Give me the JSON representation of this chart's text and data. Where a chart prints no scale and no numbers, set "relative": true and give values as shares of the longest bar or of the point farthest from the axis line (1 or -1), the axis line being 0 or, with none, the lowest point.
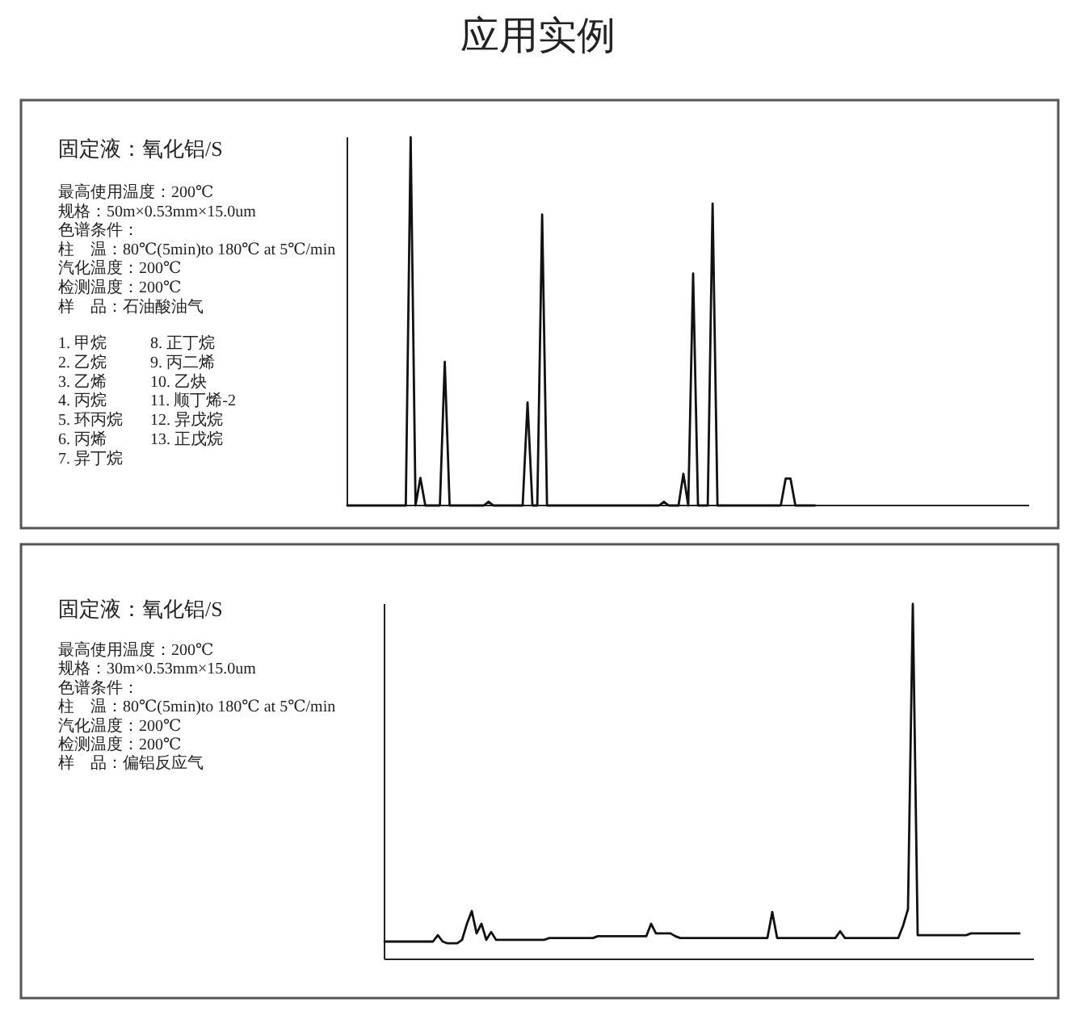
{
  "chart_data": [
    {
      "type": "line",
      "title": "应用实例",
      "annotations": [
        "固定液：氧化铝/S",
        "最高使用温度：200℃",
        "规格：50m×0.53mm×15.0um",
        "色谱条件：",
        "柱　温：80℃(5min)to 180℃ at 5℃/min",
        "汽化温度：200℃",
        "检测温度：200℃",
        "样　品：石油酸油气",
        "1. 甲烷",
        "2. 乙烷",
        "3. 乙烯",
        "4. 丙烷",
        "5. 环丙烷",
        "6. 丙烯",
        "7. 异丁烷",
        "8. 正丁烷",
        "9. 丙二烯",
        "10. 乙炔",
        "11. 顺丁烯-2",
        "12. 异戊烷",
        "13. 正戊烷"
      ],
      "relative": true,
      "categories": [
        null,
        null,
        null,
        null,
        null,
        null,
        null,
        null,
        null,
        null,
        null,
        null,
        null,
        null,
        null,
        null,
        null,
        null,
        null,
        null,
        null,
        null,
        null,
        null,
        null,
        null,
        null,
        null,
        null,
        null,
        null,
        null,
        null,
        null,
        null,
        null,
        null,
        null,
        null,
        null,
        null,
        null,
        null,
        null,
        null,
        null,
        null,
        null,
        null,
        null,
        null,
        null,
        null,
        null,
        null,
        null,
        null,
        null,
        null,
        null,
        null,
        null,
        null,
        null,
        null,
        null,
        null,
        null,
        null,
        null,
        null,
        null,
        null,
        null,
        null,
        null,
        null,
        null,
        null,
        null,
        null,
        null,
        null,
        null,
        null,
        null,
        null,
        null,
        null,
        null,
        null,
        null,
        null,
        null,
        null,
        null,
        null,
        null,
        null,
        null,
        null,
        null,
        null,
        null,
        null,
        null,
        null,
        null,
        null,
        null,
        null,
        null,
        null,
        null,
        null,
        null,
        null,
        null,
        null,
        null,
        null,
        null,
        null,
        null,
        null,
        null,
        null,
        null,
        null,
        null,
        null,
        null,
        null,
        null,
        null,
        null,
        null,
        null,
        null,
        null,
        null
      ],
      "series": [
        {
          "color": "#111111",
          "values": [
            0,
            0,
            0,
            0,
            0,
            0,
            0,
            0,
            0,
            0,
            0,
            0,
            0,
            1,
            0,
            0.075,
            0,
            0,
            0,
            0,
            0.39,
            0,
            0,
            0,
            0,
            0,
            0,
            0,
            0,
            0.01,
            0,
            0,
            0,
            0,
            0,
            0,
            0,
            0.28,
            0,
            0,
            0.79,
            0,
            0,
            0,
            0,
            0,
            0,
            0,
            0,
            0,
            0,
            0,
            0,
            0,
            0,
            0,
            0,
            0,
            0,
            0,
            0,
            0,
            0,
            0,
            0,
            0.01,
            0,
            0,
            0,
            0.086,
            0,
            0.63,
            0,
            0,
            0,
            0.82,
            0,
            0,
            0,
            0,
            0,
            0,
            0,
            0,
            0,
            0,
            0,
            0,
            0,
            0,
            0.073,
            0.073,
            0,
            0,
            0,
            0,
            0,
            null,
            null,
            null,
            null,
            null,
            null,
            null,
            null,
            null,
            null,
            null,
            null,
            null,
            null,
            null,
            null,
            null,
            null,
            null,
            null,
            null,
            null,
            null,
            null,
            null,
            null,
            null,
            null,
            null,
            null,
            null,
            null,
            null,
            null,
            null,
            null,
            null,
            null,
            null,
            null,
            null,
            null,
            null,
            null
          ]
        }
      ]
    },
    {
      "type": "line",
      "annotations": [
        "固定液：氧化铝/S",
        "最高使用温度：200℃",
        "规格：30m×0.53mm×15.0um",
        "色谱条件：",
        "柱　温：80℃(5min)to 180℃ at 5℃/min",
        "汽化温度：200℃",
        "检测温度：200℃",
        "样　品：偏铝反应气"
      ],
      "relative": true,
      "categories": [
        null,
        null,
        null,
        null,
        null,
        null,
        null,
        null,
        null,
        null,
        null,
        null,
        null,
        null,
        null,
        null,
        null,
        null,
        null,
        null,
        null,
        null,
        null,
        null,
        null,
        null,
        null,
        null,
        null,
        null,
        null,
        null,
        null,
        null,
        null,
        null,
        null,
        null,
        null,
        null,
        null,
        null,
        null,
        null,
        null,
        null,
        null,
        null,
        null,
        null,
        null,
        null,
        null,
        null,
        null,
        null,
        null,
        null,
        null,
        null,
        null,
        null,
        null,
        null,
        null,
        null,
        null,
        null,
        null,
        null,
        null,
        null,
        null,
        null,
        null,
        null,
        null,
        null,
        null,
        null,
        null,
        null,
        null,
        null,
        null,
        null,
        null,
        null,
        null,
        null,
        null,
        null,
        null,
        null,
        null,
        null,
        null,
        null,
        null,
        null,
        null,
        null,
        null,
        null,
        null,
        null,
        null,
        null,
        null,
        null,
        null,
        null,
        null,
        null,
        null,
        null,
        null,
        null,
        null,
        null,
        null,
        null,
        null,
        null,
        null,
        null,
        null,
        null,
        null,
        null,
        null,
        null,
        null,
        null,
        null
      ],
      "series": [
        {
          "color": "#111111",
          "values": [
            0.05,
            0.05,
            0.05,
            0.05,
            0.05,
            0.05,
            0.05,
            0.05,
            0.05,
            0.05,
            0.05,
            0.068,
            0.05,
            0.045,
            0.045,
            0.045,
            0.055,
            0.1,
            0.136,
            0.073,
            0.1,
            0.055,
            0.077,
            0.055,
            0.055,
            0.055,
            0.055,
            0.055,
            0.055,
            0.055,
            0.055,
            0.055,
            0.055,
            0.055,
            0.06,
            0.06,
            0.06,
            0.06,
            0.06,
            0.06,
            0.06,
            0.06,
            0.06,
            0.06,
            0.065,
            0.065,
            0.065,
            0.065,
            0.065,
            0.065,
            0.065,
            0.065,
            0.065,
            0.065,
            0.065,
            0.1,
            0.073,
            0.073,
            0.073,
            0.073,
            0.065,
            0.06,
            0.06,
            0.06,
            0.06,
            0.06,
            0.06,
            0.06,
            0.06,
            0.06,
            0.06,
            0.06,
            0.06,
            0.06,
            0.06,
            0.06,
            0.06,
            0.06,
            0.06,
            0.06,
            0.133,
            0.06,
            0.06,
            0.06,
            0.06,
            0.06,
            0.06,
            0.06,
            0.06,
            0.06,
            0.06,
            0.06,
            0.06,
            0.06,
            0.079,
            0.06,
            0.06,
            0.06,
            0.06,
            0.06,
            0.06,
            0.06,
            0.06,
            0.06,
            0.06,
            0.06,
            0.06,
            0.095,
            0.141,
            1,
            0.068,
            0.068,
            0.068,
            0.068,
            0.068,
            0.068,
            0.068,
            0.068,
            0.068,
            0.068,
            0.068,
            0.073,
            0.073,
            0.073,
            0.073,
            0.073,
            0.073,
            0.073,
            0.073,
            0.073,
            0.073,
            0.073,
            null,
            null,
            null
          ]
        }
      ]
    }
  ]
}
